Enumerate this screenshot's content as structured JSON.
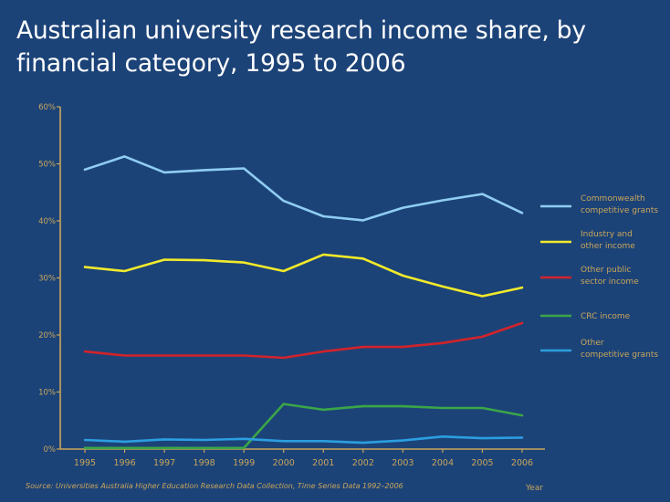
{
  "chart_data": {
    "type": "line",
    "title": "Australian university research income share, by financial category, 1995 to 2006",
    "x": [
      1995,
      1996,
      1997,
      1998,
      1999,
      2000,
      2001,
      2002,
      2003,
      2004,
      2005,
      2006
    ],
    "xlabel": "Year",
    "ylabel": "",
    "ylim": [
      0,
      60
    ],
    "yticks": [
      "0%",
      "10%",
      "20%",
      "30%",
      "40%",
      "50%",
      "60%"
    ],
    "grid": false,
    "legend_position": "right",
    "series": [
      {
        "name": "Commonwealth competitive grants",
        "color": "#8fcdf2",
        "values": [
          49,
          51.3,
          48.5,
          48.9,
          49.2,
          43.5,
          40.8,
          40.1,
          42.3,
          43.6,
          44.7,
          41.4
        ]
      },
      {
        "name": "Industry and other income",
        "color": "#f2ea2a",
        "values": [
          31.9,
          31.2,
          33.2,
          33.1,
          32.7,
          31.2,
          34.1,
          33.4,
          30.4,
          28.5,
          26.8,
          28.3
        ]
      },
      {
        "name": "Other public sector income",
        "color": "#d2232a",
        "values": [
          17.1,
          16.4,
          16.4,
          16.4,
          16.4,
          16.0,
          17.1,
          17.9,
          17.9,
          18.6,
          19.7,
          22.1
        ]
      },
      {
        "name": "CRC income",
        "color": "#3aa648",
        "values": [
          0.2,
          0.2,
          0.2,
          0.2,
          0.2,
          7.9,
          6.9,
          7.5,
          7.5,
          7.2,
          7.2,
          5.9
        ]
      },
      {
        "name": "Other competitive grants",
        "color": "#2b9fe0",
        "values": [
          1.6,
          1.3,
          1.7,
          1.6,
          1.8,
          1.4,
          1.4,
          1.1,
          1.5,
          2.2,
          1.9,
          2.0
        ]
      }
    ],
    "legend": [
      {
        "line1": "Commonwealth",
        "line2": "competitive grants"
      },
      {
        "line1": "Industry and",
        "line2": "other income"
      },
      {
        "line1": "Other public",
        "line2": "sector income"
      },
      {
        "line1": "CRC income",
        "line2": ""
      },
      {
        "line1": "Other",
        "line2": "competitive grants"
      }
    ],
    "source": "Source: Universities Australia Higher Education Research Data Collection, Time Series Data 1992–2006"
  }
}
